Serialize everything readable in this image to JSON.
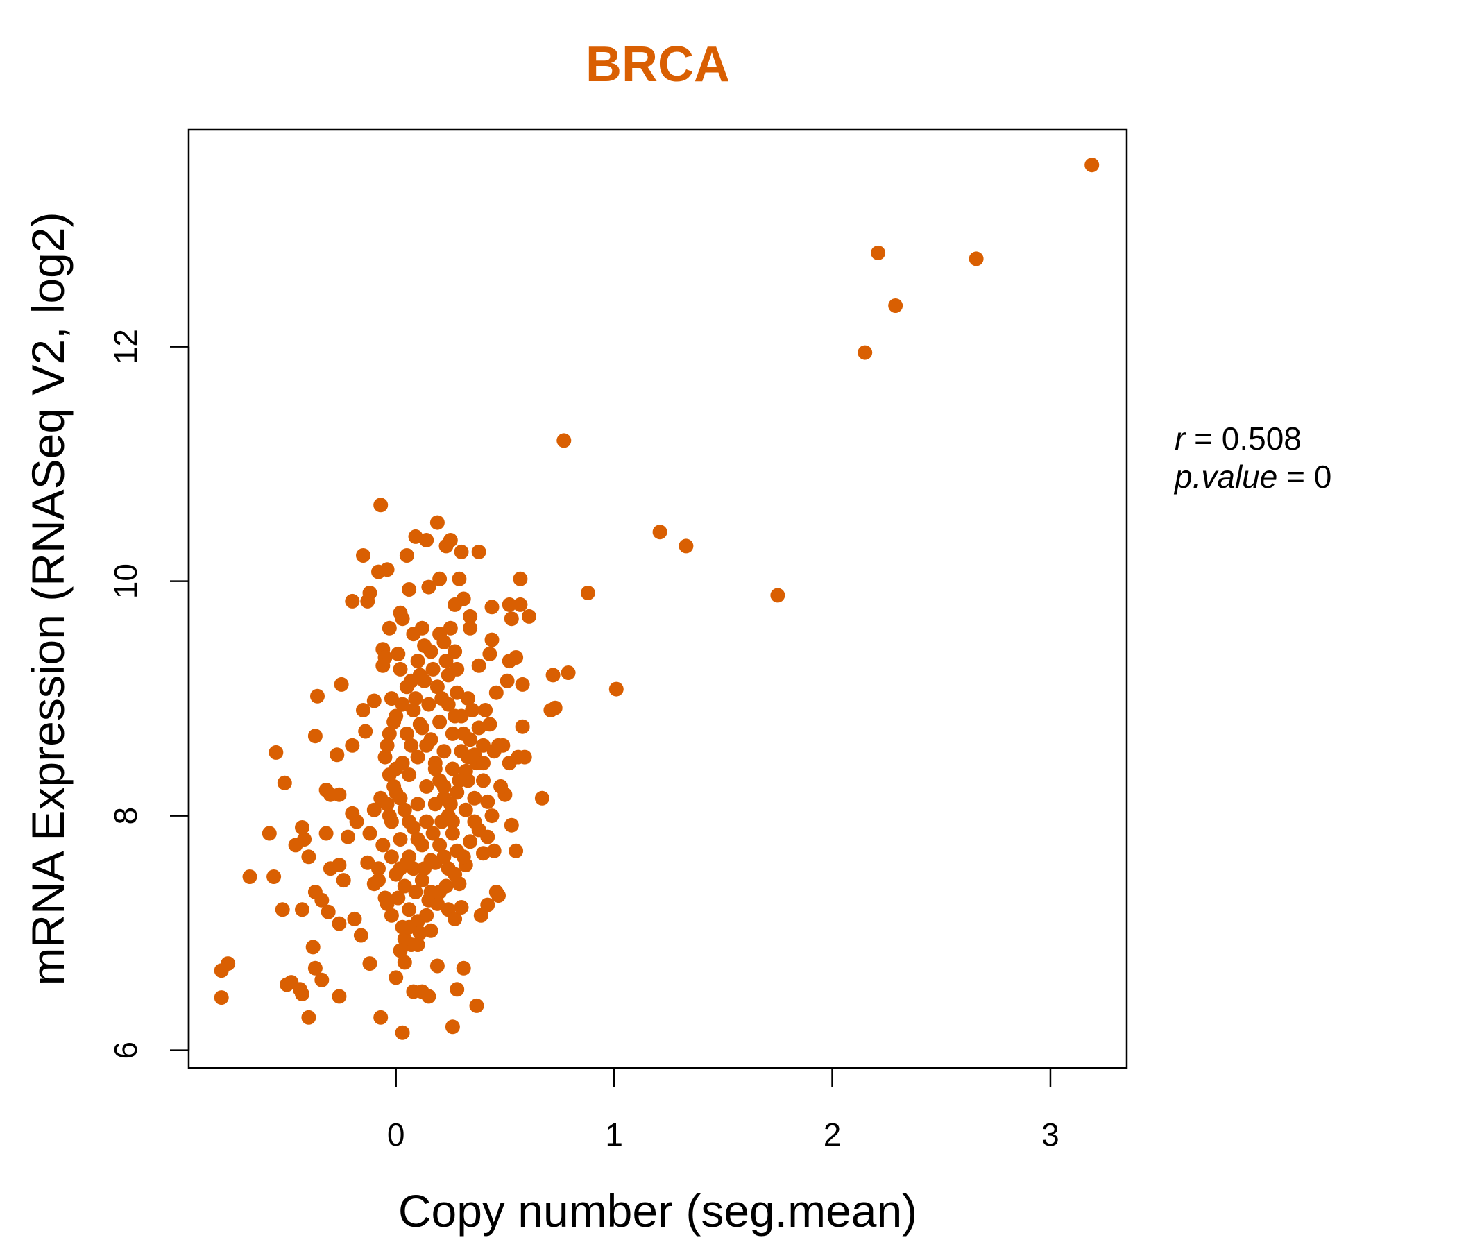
{
  "colors": {
    "point": "#D95F02",
    "title": "#D95F02",
    "axis": "#000000",
    "background": "#FFFFFF"
  },
  "chart_data": {
    "type": "scatter",
    "title": "BRCA",
    "xlabel": "Copy number (seg.mean)",
    "ylabel": "mRNA Expression (RNASeq V2, log2)",
    "xlim": [
      -0.95,
      3.35
    ],
    "ylim": [
      5.85,
      13.85
    ],
    "xticks": [
      0,
      1,
      2,
      3
    ],
    "yticks": [
      6,
      8,
      10,
      12
    ],
    "grid": false,
    "legend": "none",
    "annotation": {
      "r_symbol": "r",
      "r_eq": " = ",
      "r_value": "0.508",
      "p_symbol": "p.value",
      "p_eq": " = ",
      "p_value": "0"
    },
    "series": [
      {
        "points": [
          [
            3.19,
            13.55
          ],
          [
            2.21,
            12.8
          ],
          [
            2.66,
            12.75
          ],
          [
            2.29,
            12.35
          ],
          [
            2.15,
            11.95
          ],
          [
            0.77,
            11.2
          ],
          [
            1.21,
            10.42
          ],
          [
            1.33,
            10.3
          ],
          [
            1.75,
            9.88
          ],
          [
            0.88,
            9.9
          ],
          [
            1.01,
            9.08
          ],
          [
            0.79,
            9.22
          ],
          [
            0.72,
            9.2
          ],
          [
            0.71,
            8.9
          ],
          [
            0.73,
            8.92
          ],
          [
            0.67,
            8.15
          ],
          [
            0.58,
            8.76
          ],
          [
            0.59,
            8.5
          ],
          [
            0.58,
            9.12
          ],
          [
            0.61,
            9.7
          ],
          [
            0.57,
            10.02
          ],
          [
            0.57,
            9.8
          ],
          [
            0.52,
            9.8
          ],
          [
            0.53,
            9.68
          ],
          [
            0.52,
            9.32
          ],
          [
            0.55,
            9.35
          ],
          [
            0.51,
            9.15
          ],
          [
            0.44,
            9.5
          ],
          [
            0.43,
            9.38
          ],
          [
            0.44,
            9.78
          ],
          [
            0.38,
            10.25
          ],
          [
            0.3,
            10.25
          ],
          [
            0.25,
            10.35
          ],
          [
            0.19,
            10.5
          ],
          [
            0.23,
            10.3
          ],
          [
            0.14,
            10.35
          ],
          [
            0.09,
            10.38
          ],
          [
            0.05,
            10.22
          ],
          [
            -0.07,
            10.65
          ],
          [
            -0.15,
            10.22
          ],
          [
            -0.08,
            10.08
          ],
          [
            -0.04,
            10.1
          ],
          [
            -0.12,
            9.9
          ],
          [
            -0.2,
            9.83
          ],
          [
            -0.13,
            9.83
          ],
          [
            0.06,
            9.93
          ],
          [
            0.02,
            9.73
          ],
          [
            0.27,
            9.8
          ],
          [
            0.31,
            9.85
          ],
          [
            0.34,
            9.7
          ],
          [
            0.15,
            9.95
          ],
          [
            0.29,
            10.02
          ],
          [
            0.2,
            10.02
          ],
          [
            0.03,
            9.68
          ],
          [
            -0.03,
            9.6
          ],
          [
            -0.06,
            9.42
          ],
          [
            -0.05,
            9.35
          ],
          [
            -0.25,
            9.12
          ],
          [
            -0.36,
            9.02
          ],
          [
            -0.37,
            8.68
          ],
          [
            -0.55,
            8.54
          ],
          [
            -0.51,
            8.28
          ],
          [
            -0.32,
            8.22
          ],
          [
            -0.3,
            8.18
          ],
          [
            -0.26,
            8.18
          ],
          [
            -0.27,
            8.52
          ],
          [
            -0.2,
            8.6
          ],
          [
            -0.14,
            8.72
          ],
          [
            -0.15,
            8.9
          ],
          [
            -0.1,
            8.98
          ],
          [
            -0.58,
            7.85
          ],
          [
            -0.46,
            7.75
          ],
          [
            -0.42,
            7.8
          ],
          [
            -0.43,
            7.9
          ],
          [
            -0.4,
            7.65
          ],
          [
            -0.67,
            7.48
          ],
          [
            -0.56,
            7.48
          ],
          [
            -0.52,
            7.2
          ],
          [
            -0.43,
            7.2
          ],
          [
            -0.37,
            7.35
          ],
          [
            -0.34,
            7.28
          ],
          [
            -0.31,
            7.18
          ],
          [
            -0.26,
            7.08
          ],
          [
            -0.3,
            7.55
          ],
          [
            -0.26,
            7.58
          ],
          [
            -0.24,
            7.45
          ],
          [
            -0.32,
            7.85
          ],
          [
            -0.22,
            7.82
          ],
          [
            -0.2,
            8.02
          ],
          [
            -0.18,
            7.95
          ],
          [
            -0.8,
            6.68
          ],
          [
            -0.77,
            6.74
          ],
          [
            -0.8,
            6.45
          ],
          [
            -0.5,
            6.56
          ],
          [
            -0.48,
            6.58
          ],
          [
            -0.44,
            6.52
          ],
          [
            -0.43,
            6.48
          ],
          [
            -0.4,
            6.28
          ],
          [
            -0.37,
            6.7
          ],
          [
            -0.34,
            6.6
          ],
          [
            -0.38,
            6.88
          ],
          [
            -0.26,
            6.46
          ],
          [
            -0.19,
            7.12
          ],
          [
            -0.16,
            6.98
          ],
          [
            -0.12,
            6.74
          ],
          [
            -0.07,
            6.28
          ],
          [
            0.03,
            6.15
          ],
          [
            0.08,
            6.5
          ],
          [
            0.12,
            6.5
          ],
          [
            0.15,
            6.46
          ],
          [
            0.19,
            6.72
          ],
          [
            0.26,
            6.2
          ],
          [
            0.28,
            6.52
          ],
          [
            0.31,
            6.7
          ],
          [
            0.37,
            6.38
          ],
          [
            0.0,
            6.62
          ],
          [
            0.04,
            6.75
          ],
          [
            0.1,
            6.9
          ],
          [
            0.16,
            7.02
          ],
          [
            0.24,
            7.2
          ],
          [
            0.27,
            7.12
          ],
          [
            0.3,
            7.22
          ],
          [
            0.39,
            7.15
          ],
          [
            0.42,
            7.24
          ],
          [
            0.46,
            7.35
          ],
          [
            0.47,
            7.32
          ],
          [
            0.45,
            7.7
          ],
          [
            0.4,
            7.68
          ],
          [
            0.55,
            7.7
          ],
          [
            0.53,
            7.92
          ],
          [
            0.5,
            8.18
          ],
          [
            0.52,
            8.45
          ],
          [
            0.56,
            8.5
          ],
          [
            0.47,
            8.6
          ],
          [
            0.49,
            8.6
          ],
          [
            0.43,
            8.78
          ],
          [
            0.41,
            8.9
          ],
          [
            0.46,
            9.05
          ],
          [
            0.38,
            9.28
          ],
          [
            0.33,
            9.0
          ],
          [
            0.28,
            9.25
          ],
          [
            0.24,
            9.2
          ],
          [
            0.34,
            9.6
          ],
          [
            0.25,
            9.6
          ],
          [
            0.2,
            9.55
          ],
          [
            0.12,
            9.6
          ],
          [
            0.08,
            9.55
          ],
          [
            0.16,
            9.4
          ],
          [
            0.22,
            9.48
          ],
          [
            0.1,
            9.32
          ],
          [
            -0.06,
            9.28
          ],
          [
            0.02,
            9.25
          ],
          [
            0.32,
            8.38
          ],
          [
            0.36,
            8.52
          ],
          [
            0.4,
            8.3
          ],
          [
            0.42,
            8.12
          ],
          [
            0.36,
            7.95
          ],
          [
            0.34,
            7.78
          ],
          [
            0.32,
            7.58
          ],
          [
            0.29,
            7.42
          ],
          [
            0.2,
            7.35
          ],
          [
            0.15,
            7.28
          ],
          [
            0.1,
            7.1
          ],
          [
            0.06,
            7.2
          ],
          [
            0.03,
            7.05
          ],
          [
            -0.02,
            7.15
          ],
          [
            -0.05,
            7.3
          ],
          [
            -0.1,
            7.42
          ],
          [
            -0.13,
            7.6
          ],
          [
            -0.08,
            7.55
          ],
          [
            -0.12,
            7.85
          ],
          [
            -0.1,
            8.05
          ],
          [
            -0.07,
            8.15
          ],
          [
            -0.03,
            8.35
          ],
          [
            -0.05,
            8.5
          ],
          [
            -0.03,
            8.7
          ],
          [
            0.0,
            8.85
          ],
          [
            -0.02,
            9.0
          ],
          [
            0.05,
            9.1
          ],
          [
            0.01,
            9.38
          ],
          [
            0.08,
            8.9
          ],
          [
            0.12,
            8.75
          ],
          [
            0.14,
            8.6
          ],
          [
            0.18,
            8.45
          ],
          [
            0.2,
            8.3
          ],
          [
            0.22,
            8.15
          ],
          [
            0.24,
            8.0
          ],
          [
            0.26,
            7.85
          ],
          [
            0.28,
            7.7
          ],
          [
            0.18,
            7.6
          ],
          [
            0.12,
            7.75
          ],
          [
            0.08,
            7.9
          ],
          [
            0.04,
            8.05
          ],
          [
            0.0,
            8.2
          ],
          [
            0.06,
            8.35
          ],
          [
            0.1,
            8.5
          ],
          [
            0.16,
            8.65
          ],
          [
            0.2,
            8.8
          ],
          [
            0.24,
            8.95
          ],
          [
            0.28,
            9.05
          ],
          [
            0.3,
            8.85
          ],
          [
            0.26,
            8.7
          ],
          [
            0.22,
            8.55
          ],
          [
            0.18,
            8.4
          ],
          [
            0.14,
            8.25
          ],
          [
            0.1,
            8.1
          ],
          [
            0.06,
            7.95
          ],
          [
            0.02,
            7.8
          ],
          [
            -0.02,
            7.65
          ],
          [
            0.0,
            7.5
          ],
          [
            0.04,
            7.4
          ],
          [
            0.08,
            7.55
          ],
          [
            0.12,
            7.45
          ],
          [
            0.16,
            7.62
          ],
          [
            0.2,
            7.75
          ],
          [
            0.24,
            7.55
          ],
          [
            0.28,
            8.2
          ],
          [
            0.32,
            8.05
          ],
          [
            0.34,
            8.65
          ],
          [
            0.3,
            8.55
          ],
          [
            0.26,
            8.4
          ],
          [
            0.22,
            8.25
          ],
          [
            0.18,
            8.1
          ],
          [
            0.14,
            7.95
          ],
          [
            0.1,
            7.8
          ],
          [
            0.06,
            7.65
          ],
          [
            0.02,
            7.55
          ],
          [
            -0.02,
            7.95
          ],
          [
            -0.04,
            8.1
          ],
          [
            -0.01,
            8.25
          ],
          [
            0.03,
            8.45
          ],
          [
            0.07,
            8.6
          ],
          [
            0.11,
            8.78
          ],
          [
            0.15,
            8.95
          ],
          [
            0.19,
            9.1
          ],
          [
            0.23,
            9.32
          ],
          [
            0.27,
            9.4
          ],
          [
            0.13,
            9.15
          ],
          [
            0.09,
            9.0
          ],
          [
            0.05,
            8.7
          ],
          [
            0.35,
            8.9
          ],
          [
            0.38,
            8.75
          ],
          [
            0.4,
            8.6
          ],
          [
            0.37,
            8.45
          ],
          [
            0.33,
            8.3
          ],
          [
            0.36,
            8.15
          ],
          [
            0.38,
            7.88
          ],
          [
            0.31,
            7.65
          ],
          [
            0.27,
            7.5
          ],
          [
            0.23,
            7.4
          ],
          [
            0.19,
            7.25
          ],
          [
            0.14,
            7.15
          ],
          [
            0.11,
            7.0
          ],
          [
            0.07,
            6.9
          ],
          [
            0.04,
            6.95
          ],
          [
            0.01,
            7.3
          ],
          [
            0.05,
            7.6
          ],
          [
            0.09,
            7.35
          ],
          [
            0.13,
            7.55
          ],
          [
            0.17,
            7.85
          ],
          [
            0.21,
            7.95
          ],
          [
            0.25,
            8.1
          ],
          [
            0.29,
            8.3
          ],
          [
            0.33,
            8.5
          ],
          [
            0.31,
            8.7
          ],
          [
            0.27,
            8.85
          ],
          [
            0.21,
            9.0
          ],
          [
            0.17,
            9.25
          ],
          [
            0.13,
            9.45
          ],
          [
            0.11,
            9.2
          ],
          [
            0.07,
            9.15
          ],
          [
            0.03,
            8.95
          ],
          [
            -0.01,
            8.8
          ],
          [
            -0.04,
            8.6
          ],
          [
            0.0,
            8.4
          ],
          [
            0.02,
            8.15
          ],
          [
            -0.03,
            8.0
          ],
          [
            -0.06,
            7.75
          ],
          [
            -0.08,
            7.45
          ],
          [
            -0.04,
            7.25
          ],
          [
            0.02,
            6.85
          ],
          [
            0.06,
            7.05
          ],
          [
            0.16,
            7.35
          ],
          [
            0.22,
            7.65
          ],
          [
            0.26,
            7.95
          ],
          [
            0.4,
            8.45
          ],
          [
            0.45,
            8.55
          ],
          [
            0.48,
            8.25
          ],
          [
            0.44,
            8.0
          ],
          [
            0.42,
            7.82
          ]
        ]
      }
    ]
  }
}
